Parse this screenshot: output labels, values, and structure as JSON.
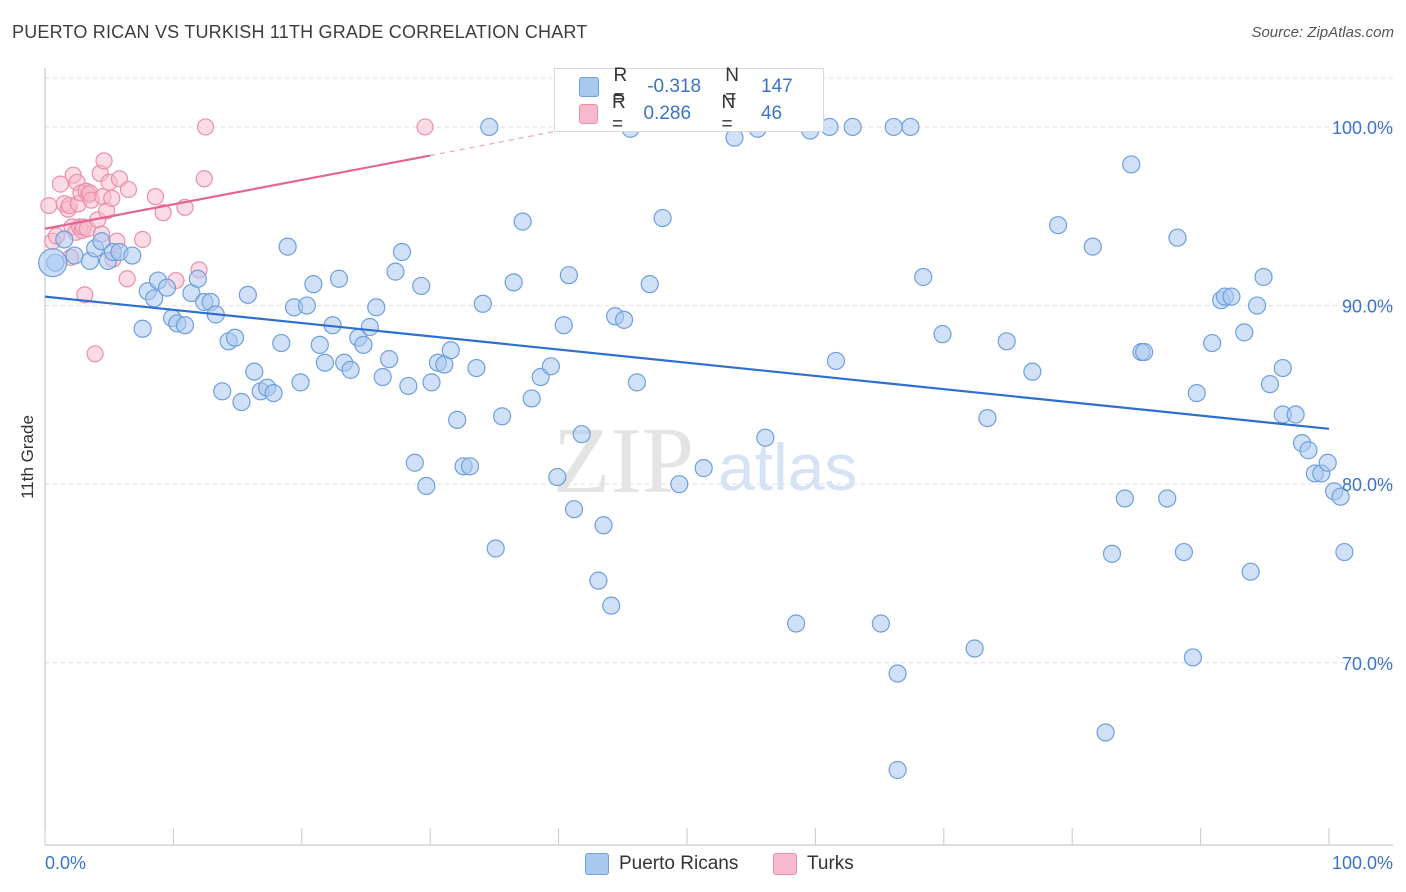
{
  "header": {
    "title": "PUERTO RICAN VS TURKISH 11TH GRADE CORRELATION CHART",
    "source": "Source: ZipAtlas.com"
  },
  "watermark": {
    "zip": "ZIP",
    "atlas": "atlas"
  },
  "legend": {
    "r_label": "R =",
    "n_label": "N =",
    "series": [
      {
        "name": "Puerto Ricans",
        "r": "-0.318",
        "n": "147"
      },
      {
        "name": "Turks",
        "r": "0.286",
        "n": "46"
      }
    ]
  },
  "colors": {
    "blue_fill": "#a9c8f0",
    "blue_stroke": "#6f9fdc",
    "blue_line": "#2f6fcf",
    "pink_fill": "#f7b9cc",
    "pink_stroke": "#ec8eaa",
    "pink_line": "#e36690",
    "tick_label": "#3a74c9",
    "grid": "#dcdcdc"
  },
  "chart_data": {
    "type": "scatter",
    "title": "PUERTO RICAN VS TURKISH 11TH GRADE CORRELATION CHART",
    "xlabel": "",
    "ylabel": "11th Grade",
    "xlim": [
      0,
      100
    ],
    "ylim": [
      59.8,
      103.3
    ],
    "x_tick_labels": [
      "0.0%",
      "100.0%"
    ],
    "y_ticks": [
      100,
      90,
      80,
      70
    ],
    "y_tick_labels": [
      "100.0%",
      "90.0%",
      "80.0%",
      "70.0%"
    ],
    "grid": true,
    "legend_position": "bottom-center",
    "series": [
      {
        "name": "Puerto Ricans",
        "trend": {
          "x": [
            0,
            100
          ],
          "y": [
            90.5,
            83.1
          ]
        },
        "points": [
          [
            0.8,
            92.4
          ],
          [
            1.5,
            93.7
          ],
          [
            2.3,
            92.8
          ],
          [
            3.5,
            92.5
          ],
          [
            3.9,
            93.2
          ],
          [
            4.4,
            93.6
          ],
          [
            4.9,
            92.5
          ],
          [
            5.3,
            93.0
          ],
          [
            5.8,
            93.0
          ],
          [
            6.8,
            92.8
          ],
          [
            7.6,
            88.7
          ],
          [
            8.0,
            90.8
          ],
          [
            8.5,
            90.4
          ],
          [
            8.8,
            91.4
          ],
          [
            9.5,
            91.0
          ],
          [
            9.9,
            89.3
          ],
          [
            10.3,
            89.0
          ],
          [
            10.9,
            88.9
          ],
          [
            11.4,
            90.7
          ],
          [
            11.9,
            91.5
          ],
          [
            12.4,
            90.2
          ],
          [
            12.9,
            90.2
          ],
          [
            13.3,
            89.5
          ],
          [
            13.8,
            85.2
          ],
          [
            14.3,
            88.0
          ],
          [
            14.8,
            88.2
          ],
          [
            15.3,
            84.6
          ],
          [
            15.8,
            90.6
          ],
          [
            16.3,
            86.3
          ],
          [
            16.8,
            85.2
          ],
          [
            17.3,
            85.4
          ],
          [
            17.8,
            85.1
          ],
          [
            18.4,
            87.9
          ],
          [
            18.9,
            93.3
          ],
          [
            19.4,
            89.9
          ],
          [
            19.9,
            85.7
          ],
          [
            20.4,
            90.0
          ],
          [
            20.9,
            91.2
          ],
          [
            21.4,
            87.8
          ],
          [
            21.8,
            86.8
          ],
          [
            22.4,
            88.9
          ],
          [
            22.9,
            91.5
          ],
          [
            23.3,
            86.8
          ],
          [
            23.8,
            86.4
          ],
          [
            24.4,
            88.2
          ],
          [
            24.8,
            87.8
          ],
          [
            25.3,
            88.8
          ],
          [
            25.8,
            89.9
          ],
          [
            26.3,
            86.0
          ],
          [
            26.8,
            87.0
          ],
          [
            27.3,
            91.9
          ],
          [
            27.8,
            93.0
          ],
          [
            28.3,
            85.5
          ],
          [
            28.8,
            81.2
          ],
          [
            29.3,
            91.1
          ],
          [
            29.7,
            79.9
          ],
          [
            30.1,
            85.7
          ],
          [
            30.6,
            86.8
          ],
          [
            31.1,
            86.7
          ],
          [
            31.6,
            87.5
          ],
          [
            32.1,
            83.6
          ],
          [
            32.6,
            81.0
          ],
          [
            33.1,
            81.0
          ],
          [
            33.6,
            86.5
          ],
          [
            34.1,
            90.1
          ],
          [
            34.6,
            100.0
          ],
          [
            35.1,
            76.4
          ],
          [
            35.6,
            83.8
          ],
          [
            36.5,
            91.3
          ],
          [
            37.2,
            94.7
          ],
          [
            37.9,
            84.8
          ],
          [
            38.6,
            86.0
          ],
          [
            39.4,
            86.6
          ],
          [
            39.9,
            80.4
          ],
          [
            40.4,
            88.9
          ],
          [
            40.8,
            91.7
          ],
          [
            41.2,
            78.6
          ],
          [
            41.8,
            82.8
          ],
          [
            43.1,
            74.6
          ],
          [
            43.5,
            77.7
          ],
          [
            44.1,
            73.2
          ],
          [
            44.4,
            89.4
          ],
          [
            45.1,
            89.2
          ],
          [
            45.6,
            99.9
          ],
          [
            46.1,
            85.7
          ],
          [
            47.1,
            91.2
          ],
          [
            48.1,
            94.9
          ],
          [
            49.4,
            80.0
          ],
          [
            51.3,
            80.9
          ],
          [
            53.7,
            99.4
          ],
          [
            55.5,
            99.9
          ],
          [
            56.1,
            82.6
          ],
          [
            58.5,
            72.2
          ],
          [
            59.6,
            99.8
          ],
          [
            61.1,
            100.0
          ],
          [
            61.6,
            86.9
          ],
          [
            62.9,
            100.0
          ],
          [
            65.1,
            72.2
          ],
          [
            66.1,
            100.0
          ],
          [
            66.4,
            64.0
          ],
          [
            66.4,
            69.4
          ],
          [
            67.4,
            100.0
          ],
          [
            68.4,
            91.6
          ],
          [
            69.9,
            88.4
          ],
          [
            72.4,
            70.8
          ],
          [
            73.4,
            83.7
          ],
          [
            74.9,
            88.0
          ],
          [
            76.9,
            86.3
          ],
          [
            78.9,
            94.5
          ],
          [
            81.6,
            93.3
          ],
          [
            82.6,
            66.1
          ],
          [
            83.1,
            76.1
          ],
          [
            84.1,
            79.2
          ],
          [
            84.6,
            97.9
          ],
          [
            85.4,
            87.4
          ],
          [
            85.6,
            87.4
          ],
          [
            87.4,
            79.2
          ],
          [
            88.2,
            93.8
          ],
          [
            88.7,
            76.2
          ],
          [
            89.4,
            70.3
          ],
          [
            89.7,
            85.1
          ],
          [
            90.9,
            87.9
          ],
          [
            91.6,
            90.3
          ],
          [
            91.9,
            90.5
          ],
          [
            92.4,
            90.5
          ],
          [
            93.4,
            88.5
          ],
          [
            93.9,
            75.1
          ],
          [
            94.4,
            90.0
          ],
          [
            94.9,
            91.6
          ],
          [
            95.4,
            85.6
          ],
          [
            96.4,
            83.9
          ],
          [
            96.4,
            86.5
          ],
          [
            97.4,
            83.9
          ],
          [
            97.9,
            82.3
          ],
          [
            98.4,
            81.9
          ],
          [
            98.9,
            80.6
          ],
          [
            99.4,
            80.6
          ],
          [
            99.9,
            81.2
          ],
          [
            100.4,
            79.6
          ],
          [
            100.9,
            79.3
          ],
          [
            101.2,
            76.2
          ]
        ]
      },
      {
        "name": "Turks",
        "trend": {
          "x": [
            0,
            30
          ],
          "y": [
            94.3,
            98.4
          ]
        },
        "trend_extension": {
          "x": [
            30,
            43
          ],
          "y": [
            98.4,
            100.2
          ]
        },
        "points": [
          [
            0.3,
            95.6
          ],
          [
            0.6,
            93.6
          ],
          [
            0.9,
            93.9
          ],
          [
            1.2,
            96.8
          ],
          [
            1.5,
            95.7
          ],
          [
            1.8,
            95.4
          ],
          [
            1.9,
            95.6
          ],
          [
            2.0,
            92.7
          ],
          [
            2.1,
            94.4
          ],
          [
            2.2,
            97.3
          ],
          [
            2.4,
            94.1
          ],
          [
            2.5,
            96.9
          ],
          [
            2.6,
            95.7
          ],
          [
            2.7,
            94.4
          ],
          [
            2.8,
            96.3
          ],
          [
            2.9,
            94.2
          ],
          [
            3.0,
            94.4
          ],
          [
            3.1,
            90.6
          ],
          [
            3.2,
            96.4
          ],
          [
            3.3,
            94.3
          ],
          [
            3.4,
            96.2
          ],
          [
            3.5,
            96.3
          ],
          [
            3.6,
            95.9
          ],
          [
            3.9,
            87.3
          ],
          [
            4.1,
            94.8
          ],
          [
            4.3,
            97.4
          ],
          [
            4.4,
            94.0
          ],
          [
            4.5,
            96.1
          ],
          [
            4.6,
            98.1
          ],
          [
            4.8,
            95.3
          ],
          [
            5.0,
            96.9
          ],
          [
            5.2,
            96.0
          ],
          [
            5.3,
            92.6
          ],
          [
            5.6,
            93.6
          ],
          [
            5.8,
            97.1
          ],
          [
            6.4,
            91.5
          ],
          [
            6.5,
            96.5
          ],
          [
            7.6,
            93.7
          ],
          [
            8.6,
            96.1
          ],
          [
            9.2,
            95.2
          ],
          [
            10.2,
            91.4
          ],
          [
            10.9,
            95.5
          ],
          [
            12.0,
            92.0
          ],
          [
            12.4,
            97.1
          ],
          [
            12.5,
            100.0
          ],
          [
            29.6,
            100.0
          ]
        ]
      }
    ]
  }
}
